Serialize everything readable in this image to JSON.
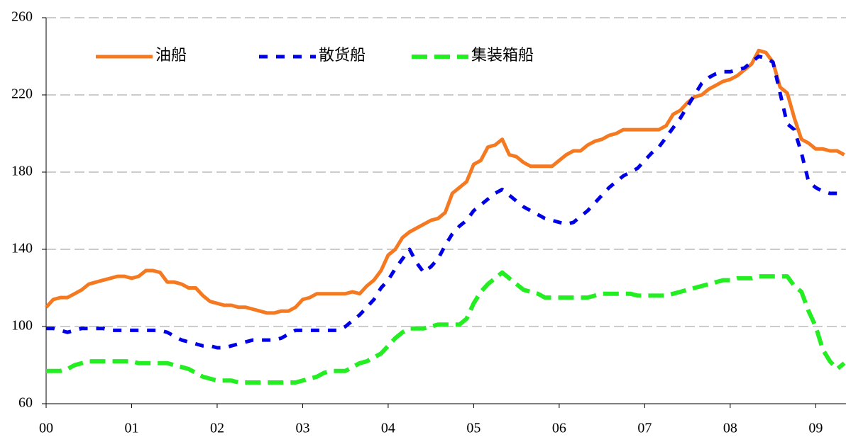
{
  "chart_data": {
    "type": "line",
    "categories": [
      "00",
      null,
      null,
      null,
      null,
      null,
      null,
      null,
      null,
      null,
      null,
      null,
      "01",
      null,
      null,
      null,
      null,
      null,
      null,
      null,
      null,
      null,
      null,
      null,
      "02",
      null,
      null,
      null,
      null,
      null,
      null,
      null,
      null,
      null,
      null,
      null,
      "03",
      null,
      null,
      null,
      null,
      null,
      null,
      null,
      null,
      null,
      null,
      null,
      "04",
      null,
      null,
      null,
      null,
      null,
      null,
      null,
      null,
      null,
      null,
      null,
      "05",
      null,
      null,
      null,
      null,
      null,
      null,
      null,
      null,
      null,
      null,
      null,
      "06",
      null,
      null,
      null,
      null,
      null,
      null,
      null,
      null,
      null,
      null,
      null,
      "07",
      null,
      null,
      null,
      null,
      null,
      null,
      null,
      null,
      null,
      null,
      null,
      "08",
      null,
      null,
      null,
      null,
      null,
      null,
      null,
      null,
      null,
      null,
      null,
      "09",
      null,
      null,
      null,
      null
    ],
    "series": [
      {
        "name": "油船",
        "color": "#f47920",
        "values": [
          110,
          114,
          115,
          115,
          117,
          119,
          122,
          123,
          124,
          125,
          126,
          126,
          125,
          126,
          129,
          129,
          128,
          123,
          123,
          122,
          120,
          120,
          116,
          113,
          112,
          111,
          111,
          110,
          110,
          109,
          108,
          107,
          107,
          108,
          108,
          110,
          114,
          115,
          117,
          117,
          117,
          117,
          117,
          118,
          117,
          121,
          124,
          129,
          137,
          140,
          146,
          149,
          151,
          153,
          155,
          156,
          159,
          169,
          172,
          175,
          184,
          186,
          193,
          194,
          197,
          189,
          188,
          185,
          183,
          183,
          183,
          183,
          186,
          189,
          191,
          191,
          194,
          196,
          197,
          199,
          200,
          202,
          202,
          202,
          202,
          202,
          202,
          204,
          210,
          212,
          216,
          219,
          220,
          223,
          225,
          227,
          228,
          230,
          233,
          236,
          243,
          242,
          237,
          224,
          221,
          208,
          197,
          195,
          192,
          192,
          191,
          191,
          189
        ]
      },
      {
        "name": "散货船",
        "color": "#0000e6",
        "values": [
          99,
          99,
          98,
          97,
          98,
          99,
          99,
          99,
          99,
          98,
          98,
          98,
          98,
          98,
          98,
          98,
          98,
          97,
          95,
          93,
          92,
          91,
          90,
          90,
          89,
          89,
          90,
          91,
          92,
          93,
          93,
          93,
          93,
          94,
          96,
          98,
          98,
          98,
          98,
          98,
          98,
          98,
          100,
          103,
          106,
          110,
          114,
          120,
          124,
          130,
          135,
          140,
          133,
          128,
          131,
          135,
          142,
          148,
          152,
          155,
          160,
          163,
          166,
          169,
          171,
          168,
          165,
          162,
          160,
          158,
          156,
          155,
          154,
          153,
          154,
          157,
          160,
          164,
          168,
          172,
          175,
          178,
          180,
          182,
          186,
          190,
          193,
          198,
          203,
          208,
          214,
          220,
          226,
          229,
          231,
          232,
          232,
          233,
          234,
          237,
          240,
          239,
          237,
          221,
          205,
          202,
          190,
          175,
          172,
          170,
          169,
          169,
          168
        ]
      },
      {
        "name": "集装箱船",
        "color": "#22ee22",
        "values": [
          77,
          77,
          77,
          78,
          80,
          81,
          82,
          82,
          82,
          82,
          82,
          82,
          82,
          81,
          81,
          81,
          81,
          81,
          80,
          79,
          78,
          76,
          74,
          73,
          72,
          72,
          72,
          71,
          71,
          71,
          71,
          71,
          71,
          71,
          71,
          71,
          72,
          73,
          74,
          76,
          77,
          77,
          77,
          79,
          81,
          82,
          84,
          86,
          90,
          94,
          97,
          99,
          99,
          99,
          100,
          101,
          101,
          101,
          101,
          104,
          112,
          118,
          122,
          125,
          128,
          125,
          122,
          119,
          118,
          117,
          115,
          115,
          115,
          115,
          115,
          115,
          115,
          116,
          117,
          117,
          117,
          117,
          117,
          116,
          116,
          116,
          116,
          116,
          117,
          118,
          119,
          120,
          121,
          122,
          123,
          124,
          124,
          125,
          125,
          125,
          126,
          126,
          126,
          126,
          126,
          121,
          118,
          108,
          100,
          88,
          82,
          78,
          81
        ]
      }
    ],
    "ylim": [
      60,
      260
    ],
    "yticks": [
      60,
      100,
      140,
      180,
      220,
      260
    ],
    "grid": true,
    "legend": "top-left"
  }
}
